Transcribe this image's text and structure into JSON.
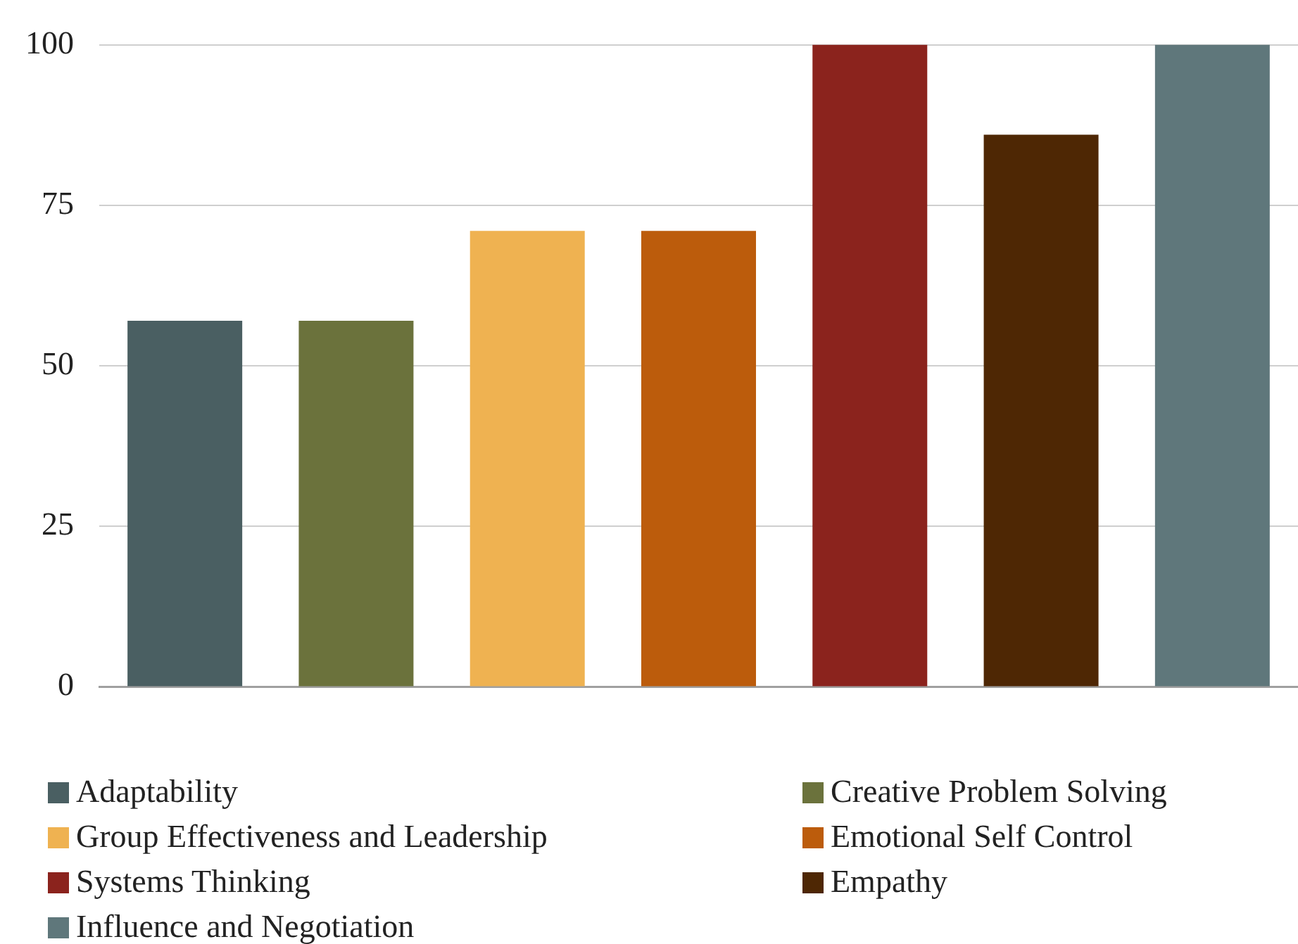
{
  "chart_data": {
    "type": "bar",
    "categories": [
      null,
      null,
      null,
      null,
      null,
      null,
      null
    ],
    "series": [
      {
        "name": "Adaptability",
        "color": "#4a5f62",
        "values": [
          57,
          null,
          null,
          null,
          null,
          null,
          null
        ]
      },
      {
        "name": "Creative Problem Solving",
        "color": "#6b723c",
        "values": [
          null,
          57,
          null,
          null,
          null,
          null,
          null
        ]
      },
      {
        "name": "Group Effectiveness and Leadership",
        "color": "#efb251",
        "values": [
          null,
          null,
          71,
          null,
          null,
          null,
          null
        ]
      },
      {
        "name": "Emotional Self Control",
        "color": "#bc5c0c",
        "values": [
          null,
          null,
          null,
          71,
          null,
          null,
          null
        ]
      },
      {
        "name": "Systems Thinking",
        "color": "#8b231d",
        "values": [
          null,
          null,
          null,
          null,
          100,
          null,
          null
        ]
      },
      {
        "name": "Empathy",
        "color": "#4e2704",
        "values": [
          null,
          null,
          null,
          null,
          null,
          86,
          null
        ]
      },
      {
        "name": "Influence and Negotiation",
        "color": "#5f777b",
        "values": [
          null,
          null,
          null,
          null,
          null,
          null,
          100
        ]
      }
    ],
    "ylim": [
      0,
      100
    ],
    "yticks": [
      0,
      25,
      50,
      75,
      100
    ],
    "grid": "y",
    "legend": "bottom",
    "tick_labels": "y"
  }
}
